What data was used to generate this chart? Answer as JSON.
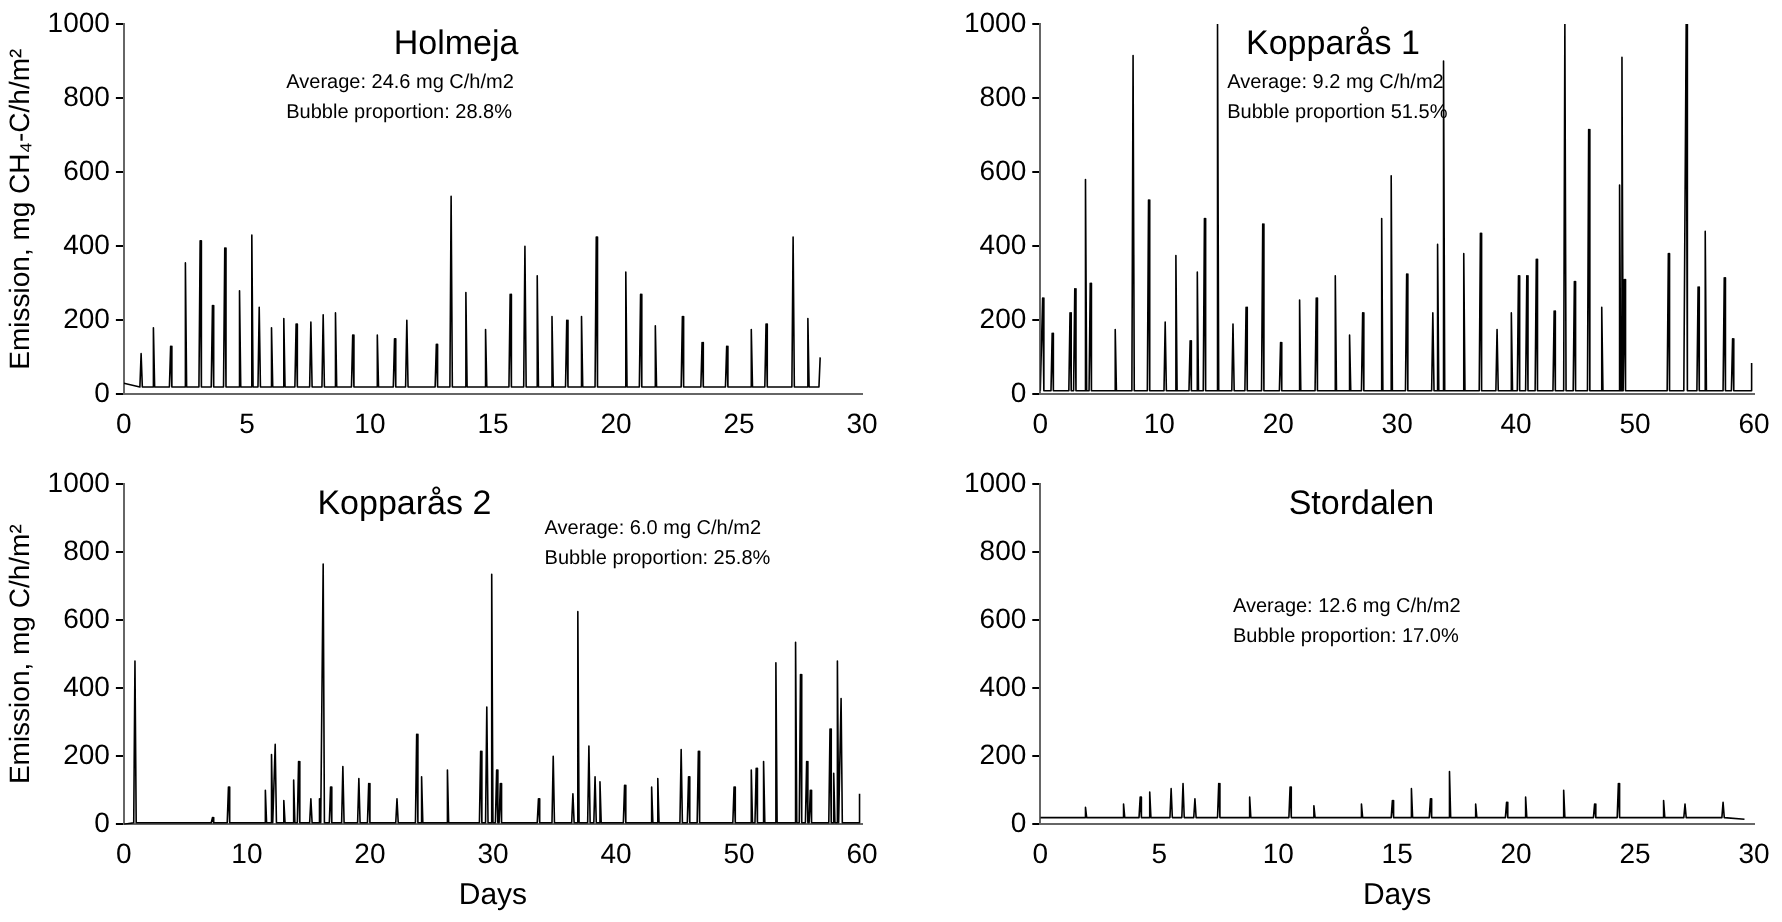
{
  "chart_data": [
    {
      "type": "line",
      "title": "Holmeja",
      "ylabel": "Emission, mg CH₄-C/h/m²",
      "annotations": [
        "Average: 24.6 mg C/h/m2",
        "Bubble proportion: 28.8%"
      ],
      "xlim": [
        0,
        30
      ],
      "xticks": [
        0,
        5,
        10,
        15,
        20,
        25,
        30
      ],
      "ylim": [
        0,
        1000
      ],
      "yticks": [
        0,
        200,
        400,
        600,
        800,
        1000
      ],
      "grid": false,
      "legend": false,
      "series": [
        {
          "color": "#000000",
          "x": [
            0,
            0.65,
            0.7,
            0.75,
            1.15,
            1.2,
            1.25,
            1.85,
            1.9,
            1.95,
            2.45,
            2.5,
            2.55,
            3.05,
            3.1,
            3.15,
            3.55,
            3.6,
            3.65,
            4.05,
            4.1,
            4.15,
            4.65,
            4.7,
            4.75,
            5.15,
            5.2,
            5.25,
            5.45,
            5.5,
            5.55,
            5.95,
            6,
            6.05,
            6.45,
            6.5,
            6.55,
            6.95,
            7,
            7.05,
            7.55,
            7.6,
            7.65,
            8.05,
            8.1,
            8.15,
            8.55,
            8.6,
            8.65,
            9.25,
            9.3,
            9.35,
            10.25,
            10.3,
            10.35,
            10.95,
            11,
            11.05,
            11.45,
            11.5,
            11.55,
            12.65,
            12.7,
            12.75,
            13.25,
            13.3,
            13.35,
            13.85,
            13.9,
            13.95,
            14.65,
            14.7,
            14.75,
            15.65,
            15.7,
            15.75,
            16.25,
            16.3,
            16.35,
            16.75,
            16.8,
            16.85,
            17.35,
            17.4,
            17.45,
            17.95,
            18,
            18.05,
            18.55,
            18.6,
            18.65,
            19.15,
            19.2,
            19.25,
            20.35,
            20.4,
            20.45,
            20.95,
            21,
            21.05,
            21.55,
            21.6,
            21.65,
            22.65,
            22.7,
            22.75,
            23.45,
            23.5,
            23.55,
            24.45,
            24.5,
            24.55,
            25.45,
            25.5,
            25.55,
            26.05,
            26.1,
            26.15,
            27.15,
            27.2,
            27.25,
            27.75,
            27.8,
            27.85,
            28.25,
            28.3
          ],
          "values": [
            30,
            20,
            110,
            20,
            20,
            180,
            20,
            20,
            130,
            20,
            20,
            355,
            20,
            20,
            415,
            20,
            20,
            240,
            20,
            20,
            395,
            20,
            20,
            280,
            20,
            20,
            430,
            20,
            20,
            235,
            20,
            20,
            180,
            20,
            20,
            205,
            20,
            20,
            190,
            20,
            20,
            195,
            20,
            20,
            215,
            20,
            20,
            220,
            20,
            20,
            160,
            20,
            20,
            160,
            20,
            20,
            150,
            20,
            20,
            200,
            20,
            20,
            135,
            20,
            20,
            535,
            20,
            20,
            275,
            20,
            20,
            175,
            20,
            20,
            270,
            20,
            20,
            400,
            20,
            20,
            320,
            20,
            20,
            210,
            20,
            20,
            200,
            20,
            20,
            210,
            20,
            20,
            425,
            20,
            20,
            330,
            20,
            20,
            270,
            20,
            20,
            185,
            20,
            20,
            210,
            20,
            20,
            140,
            20,
            20,
            130,
            20,
            20,
            175,
            20,
            20,
            190,
            20,
            20,
            425,
            20,
            20,
            205,
            20,
            20,
            100
          ]
        }
      ]
    },
    {
      "type": "line",
      "title": "Kopparås 1",
      "annotations": [
        "Average: 9.2 mg C/h/m2",
        "Bubble proportion 51.5%"
      ],
      "xlim": [
        0,
        60
      ],
      "xticks": [
        0,
        10,
        20,
        30,
        40,
        50,
        60
      ],
      "ylim": [
        0,
        1000
      ],
      "yticks": [
        0,
        200,
        400,
        600,
        800,
        1000
      ],
      "grid": false,
      "legend": false,
      "series": [
        {
          "color": "#000000",
          "x": [
            0,
            0.2,
            0.3,
            0.9,
            1,
            1.1,
            2.4,
            2.5,
            2.6,
            2.8,
            2.9,
            3,
            3.7,
            3.8,
            3.9,
            4.1,
            4.2,
            4.3,
            6.2,
            6.3,
            6.4,
            7.7,
            7.8,
            7.9,
            9,
            9.1,
            9.2,
            10.4,
            10.5,
            10.6,
            11.3,
            11.4,
            11.5,
            12.5,
            12.6,
            12.7,
            13.1,
            13.2,
            13.3,
            13.7,
            13.8,
            13.9,
            14.8,
            14.9,
            15,
            16.1,
            16.2,
            16.3,
            17.2,
            17.3,
            17.4,
            18.6,
            18.7,
            18.8,
            20.1,
            20.2,
            20.3,
            21.7,
            21.8,
            21.9,
            23.1,
            23.2,
            23.3,
            24.7,
            24.8,
            24.9,
            25.9,
            26,
            26.1,
            27,
            27.1,
            27.2,
            28.6,
            28.7,
            28.8,
            29.4,
            29.5,
            29.6,
            30.7,
            30.8,
            30.9,
            32.9,
            33,
            33.1,
            33.3,
            33.4,
            33.5,
            33.8,
            33.9,
            34,
            35.5,
            35.6,
            35.7,
            36.9,
            37,
            37.1,
            38.3,
            38.4,
            38.5,
            39.5,
            39.6,
            39.7,
            40.1,
            40.2,
            40.3,
            40.8,
            40.9,
            41,
            41.6,
            41.7,
            41.8,
            43.1,
            43.2,
            43.3,
            44,
            44.1,
            44.2,
            44.8,
            44.9,
            45,
            46,
            46.1,
            46.2,
            47.1,
            47.2,
            47.3,
            48.6,
            48.7,
            48.8,
            48.9,
            49,
            49.1,
            49.2,
            52.7,
            52.8,
            52.9,
            54.1,
            54.2,
            54.3,
            54.4,
            55.2,
            55.3,
            55.4,
            55.8,
            55.9,
            56,
            57.4,
            57.5,
            57.6,
            58.1,
            58.2,
            58.3,
            59.7,
            59.8
          ],
          "values": [
            10,
            260,
            10,
            10,
            165,
            10,
            10,
            220,
            10,
            10,
            285,
            10,
            10,
            580,
            10,
            10,
            300,
            10,
            10,
            175,
            10,
            10,
            915,
            10,
            10,
            525,
            10,
            10,
            195,
            10,
            10,
            375,
            10,
            10,
            145,
            10,
            10,
            330,
            10,
            10,
            475,
            10,
            10,
            1000,
            10,
            10,
            190,
            10,
            10,
            235,
            10,
            10,
            460,
            10,
            10,
            140,
            10,
            10,
            255,
            10,
            10,
            260,
            10,
            10,
            320,
            10,
            10,
            160,
            10,
            10,
            220,
            10,
            10,
            475,
            10,
            10,
            590,
            10,
            10,
            325,
            10,
            10,
            220,
            10,
            10,
            405,
            10,
            10,
            900,
            10,
            10,
            380,
            10,
            10,
            435,
            10,
            10,
            175,
            10,
            10,
            220,
            10,
            10,
            320,
            10,
            10,
            320,
            10,
            10,
            365,
            10,
            10,
            225,
            10,
            10,
            1000,
            10,
            10,
            305,
            10,
            10,
            715,
            10,
            10,
            235,
            10,
            10,
            565,
            10,
            910,
            10,
            310,
            10,
            10,
            380,
            10,
            10,
            510,
            1000,
            10,
            10,
            290,
            10,
            10,
            440,
            10,
            10,
            315,
            10,
            10,
            150,
            10,
            10,
            85
          ]
        }
      ]
    },
    {
      "type": "line",
      "title": "Kopparås 2",
      "xlabel": "Days",
      "ylabel": "Emission, mg C/h/m²",
      "annotations": [
        "Average: 6.0 mg C/h/m2",
        "Bubble proportion: 25.8%"
      ],
      "xlim": [
        0,
        60
      ],
      "xticks": [
        0,
        10,
        20,
        30,
        40,
        50,
        60
      ],
      "ylim": [
        0,
        1000
      ],
      "yticks": [
        0,
        200,
        400,
        600,
        800,
        1000
      ],
      "grid": false,
      "legend": false,
      "series": [
        {
          "color": "#000000",
          "x": [
            0,
            0.8,
            0.9,
            1,
            7.1,
            7.2,
            7.3,
            8.4,
            8.5,
            8.6,
            11.4,
            11.5,
            11.6,
            11.9,
            12,
            12.1,
            12.2,
            12.3,
            12.4,
            12.9,
            13,
            13.1,
            13.7,
            13.8,
            13.9,
            14.1,
            14.2,
            14.3,
            15.1,
            15.2,
            15.3,
            15.8,
            15.9,
            16,
            16.1,
            16.2,
            16.3,
            16.7,
            16.8,
            16.9,
            17.7,
            17.8,
            17.9,
            19,
            19.1,
            19.2,
            19.8,
            19.9,
            20,
            22.1,
            22.2,
            22.3,
            23.7,
            23.8,
            23.9,
            24.1,
            24.2,
            24.3,
            26.2,
            26.3,
            26.4,
            28.9,
            29,
            29.1,
            29.4,
            29.5,
            29.6,
            29.8,
            29.9,
            30,
            30.2,
            30.3,
            30.4,
            30.5,
            30.6,
            30.7,
            33.6,
            33.7,
            33.8,
            34.8,
            34.9,
            35,
            36.4,
            36.5,
            36.6,
            36.8,
            36.9,
            37,
            37.7,
            37.8,
            37.9,
            38.2,
            38.3,
            38.4,
            38.6,
            38.7,
            38.8,
            40.6,
            40.7,
            40.8,
            42.8,
            42.9,
            43,
            43.3,
            43.4,
            43.5,
            45.2,
            45.3,
            45.4,
            45.8,
            45.9,
            46,
            46.6,
            46.7,
            46.8,
            49.5,
            49.6,
            49.7,
            50.9,
            51,
            51.1,
            51.3,
            51.4,
            51.5,
            51.9,
            52,
            52.1,
            52.9,
            53,
            53.1,
            54.5,
            54.6,
            54.7,
            54.9,
            55,
            55.1,
            55.4,
            55.5,
            55.6,
            55.7,
            55.8,
            55.9,
            57.3,
            57.4,
            57.5,
            57.6,
            57.7,
            57.8,
            57.9,
            58,
            58.1,
            58.2,
            58.3,
            58.4,
            59.7,
            59.8
          ],
          "values": [
            0,
            5,
            480,
            5,
            5,
            20,
            5,
            5,
            110,
            5,
            5,
            100,
            5,
            5,
            205,
            5,
            5,
            235,
            5,
            5,
            70,
            5,
            5,
            130,
            5,
            5,
            185,
            5,
            5,
            75,
            5,
            5,
            75,
            5,
            5,
            765,
            5,
            5,
            110,
            5,
            5,
            170,
            5,
            5,
            135,
            5,
            5,
            120,
            5,
            5,
            75,
            5,
            5,
            265,
            5,
            5,
            140,
            5,
            5,
            160,
            5,
            5,
            215,
            5,
            5,
            345,
            5,
            5,
            735,
            5,
            5,
            160,
            5,
            5,
            120,
            5,
            5,
            75,
            5,
            5,
            200,
            5,
            5,
            90,
            5,
            5,
            625,
            5,
            5,
            230,
            5,
            5,
            140,
            5,
            5,
            125,
            5,
            5,
            115,
            5,
            5,
            110,
            5,
            5,
            135,
            5,
            5,
            220,
            5,
            5,
            140,
            5,
            5,
            215,
            5,
            5,
            110,
            5,
            5,
            160,
            5,
            5,
            165,
            5,
            5,
            185,
            5,
            5,
            475,
            5,
            5,
            535,
            5,
            5,
            440,
            5,
            5,
            185,
            5,
            5,
            100,
            5,
            5,
            280,
            5,
            5,
            150,
            5,
            5,
            480,
            5,
            5,
            370,
            5,
            5,
            90
          ]
        }
      ]
    },
    {
      "type": "line",
      "title": "Stordalen",
      "xlabel": "Days",
      "annotations": [
        "Average: 12.6 mg C/h/m2",
        "Bubble proportion: 17.0%"
      ],
      "xlim": [
        0,
        30
      ],
      "xticks": [
        0,
        5,
        10,
        15,
        20,
        25,
        30
      ],
      "ylim": [
        0,
        1000
      ],
      "yticks": [
        0,
        200,
        400,
        600,
        800,
        1000
      ],
      "grid": false,
      "legend": false,
      "series": [
        {
          "color": "#000000",
          "x": [
            0,
            1.85,
            1.9,
            1.95,
            3.45,
            3.5,
            3.55,
            4.15,
            4.2,
            4.25,
            4.55,
            4.6,
            4.65,
            5.45,
            5.5,
            5.55,
            5.95,
            6,
            6.05,
            6.45,
            6.5,
            6.55,
            7.45,
            7.5,
            7.55,
            8.75,
            8.8,
            8.85,
            10.45,
            10.5,
            10.55,
            11.45,
            11.5,
            11.55,
            13.45,
            13.5,
            13.55,
            14.75,
            14.8,
            14.85,
            15.55,
            15.6,
            15.65,
            16.35,
            16.4,
            16.45,
            17.15,
            17.2,
            17.25,
            18.25,
            18.3,
            18.35,
            19.55,
            19.6,
            19.65,
            20.35,
            20.4,
            20.45,
            21.95,
            22,
            22.05,
            23.25,
            23.3,
            23.35,
            24.25,
            24.3,
            24.35,
            26.15,
            26.2,
            26.25,
            27.05,
            27.1,
            27.15,
            28.65,
            28.7,
            28.75,
            29.6
          ],
          "values": [
            20,
            20,
            50,
            20,
            20,
            60,
            20,
            20,
            80,
            20,
            20,
            95,
            20,
            20,
            105,
            20,
            20,
            120,
            20,
            20,
            75,
            20,
            20,
            120,
            20,
            20,
            80,
            20,
            20,
            110,
            20,
            20,
            55,
            20,
            20,
            60,
            20,
            20,
            70,
            20,
            20,
            105,
            20,
            20,
            75,
            20,
            20,
            155,
            20,
            20,
            60,
            20,
            20,
            65,
            20,
            20,
            80,
            20,
            20,
            100,
            20,
            20,
            60,
            20,
            20,
            120,
            20,
            20,
            70,
            20,
            20,
            60,
            20,
            20,
            65,
            20,
            15
          ]
        }
      ]
    }
  ]
}
